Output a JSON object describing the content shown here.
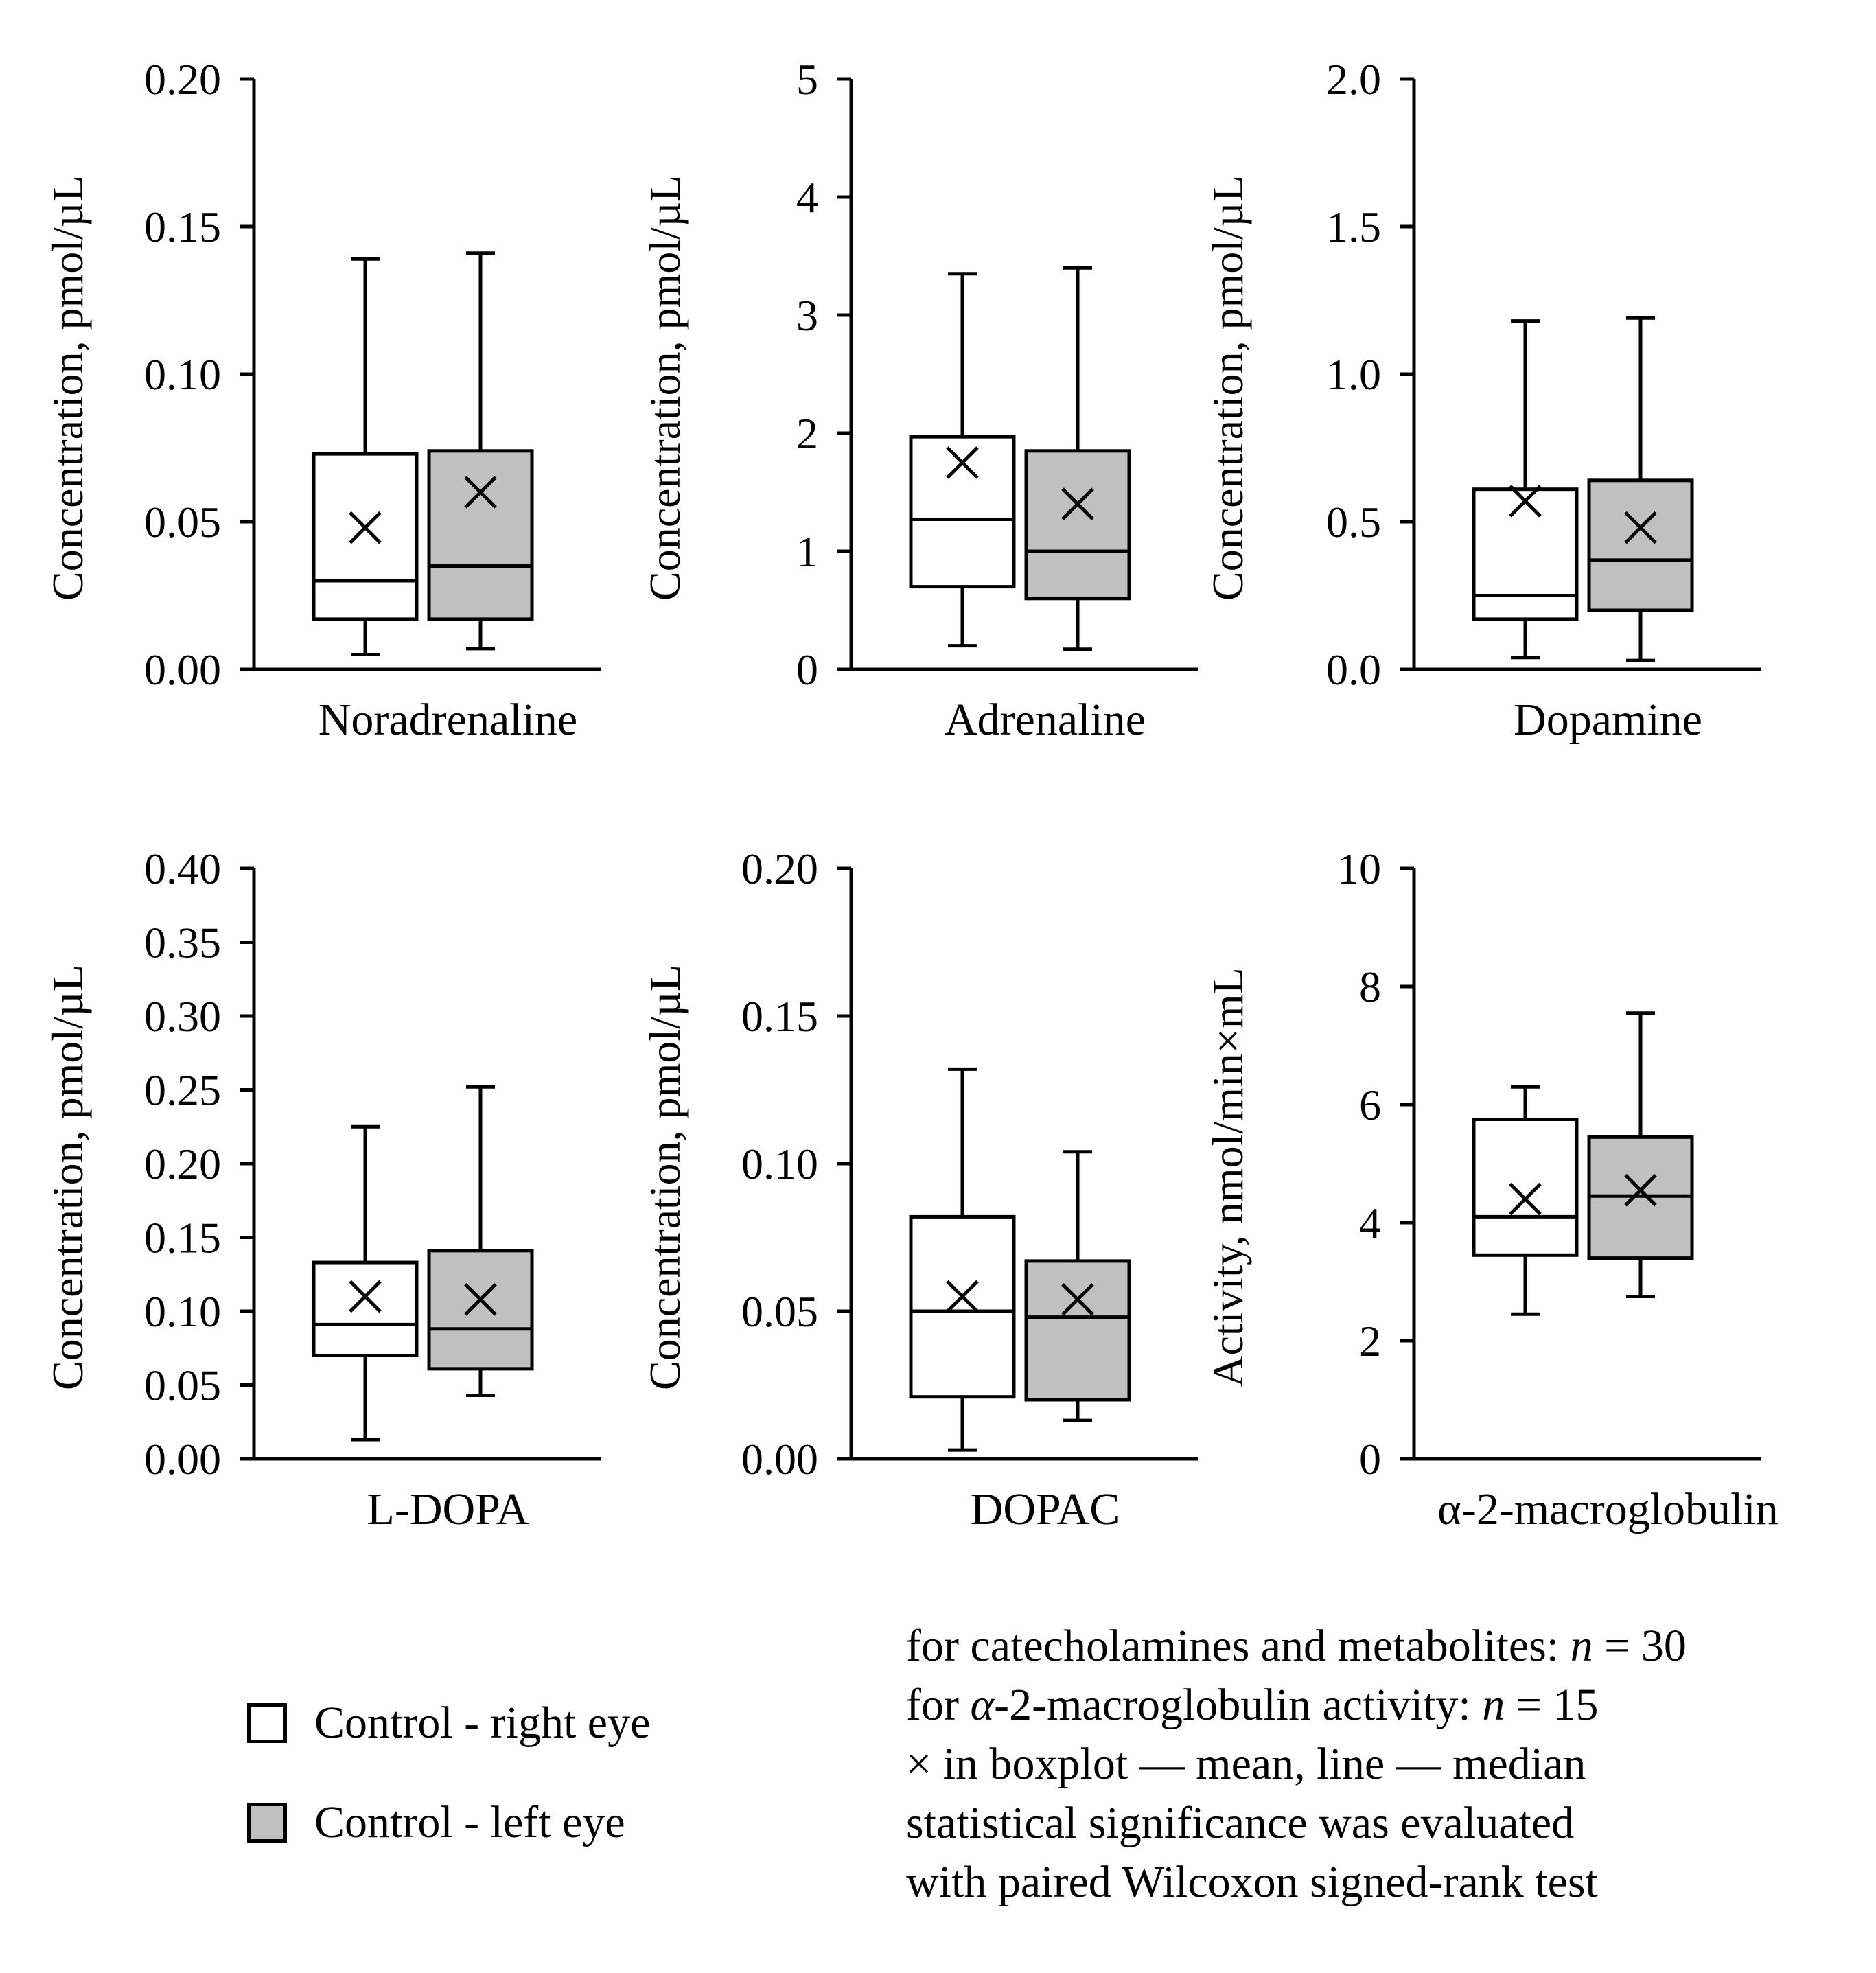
{
  "chart_data": [
    {
      "type": "boxplot",
      "id": "noradrenaline",
      "xlabel": "Noradrenaline",
      "ylabel": "Concentration, pmol/µL",
      "ylim": [
        0,
        0.2
      ],
      "yticks": [
        0.0,
        0.05,
        0.1,
        0.15,
        0.2
      ],
      "ytick_labels": [
        "0.00",
        "0.05",
        "0.10",
        "0.15",
        "0.20"
      ],
      "series": [
        {
          "name": "Control - right eye",
          "min": 0.005,
          "q1": 0.017,
          "median": 0.03,
          "q3": 0.073,
          "max": 0.139,
          "mean": 0.048
        },
        {
          "name": "Control - left eye",
          "min": 0.007,
          "q1": 0.017,
          "median": 0.035,
          "q3": 0.074,
          "max": 0.141,
          "mean": 0.06
        }
      ]
    },
    {
      "type": "boxplot",
      "id": "adrenaline",
      "xlabel": "Adrenaline",
      "ylabel": "Concentration, pmol/µL",
      "ylim": [
        0,
        5
      ],
      "yticks": [
        0,
        1,
        2,
        3,
        4,
        5
      ],
      "ytick_labels": [
        "0",
        "1",
        "2",
        "3",
        "4",
        "5"
      ],
      "series": [
        {
          "name": "Control - right eye",
          "min": 0.2,
          "q1": 0.7,
          "median": 1.27,
          "q3": 1.97,
          "max": 3.35,
          "mean": 1.75
        },
        {
          "name": "Control - left eye",
          "min": 0.17,
          "q1": 0.6,
          "median": 1.0,
          "q3": 1.85,
          "max": 3.4,
          "mean": 1.4
        }
      ]
    },
    {
      "type": "boxplot",
      "id": "dopamine",
      "xlabel": "Dopamine",
      "ylabel": "Concentration, pmol/µL",
      "ylim": [
        0,
        2.0
      ],
      "yticks": [
        0.0,
        0.5,
        1.0,
        1.5,
        2.0
      ],
      "ytick_labels": [
        "0.0",
        "0.5",
        "1.0",
        "1.5",
        "2.0"
      ],
      "series": [
        {
          "name": "Control - right eye",
          "min": 0.04,
          "q1": 0.17,
          "median": 0.25,
          "q3": 0.61,
          "max": 1.18,
          "mean": 0.57
        },
        {
          "name": "Control - left eye",
          "min": 0.03,
          "q1": 0.2,
          "median": 0.37,
          "q3": 0.64,
          "max": 1.19,
          "mean": 0.48
        }
      ]
    },
    {
      "type": "boxplot",
      "id": "l-dopa",
      "xlabel": "L-DOPA",
      "ylabel": "Concentration, pmol/µL",
      "ylim": [
        0,
        0.4
      ],
      "yticks": [
        0.0,
        0.05,
        0.1,
        0.15,
        0.2,
        0.25,
        0.3,
        0.35,
        0.4
      ],
      "ytick_labels": [
        "0.00",
        "0.05",
        "0.10",
        "0.15",
        "0.20",
        "0.25",
        "0.30",
        "0.35",
        "0.40"
      ],
      "series": [
        {
          "name": "Control - right eye",
          "min": 0.013,
          "q1": 0.07,
          "median": 0.091,
          "q3": 0.133,
          "max": 0.225,
          "mean": 0.11
        },
        {
          "name": "Control - left eye",
          "min": 0.043,
          "q1": 0.061,
          "median": 0.088,
          "q3": 0.141,
          "max": 0.252,
          "mean": 0.108
        }
      ]
    },
    {
      "type": "boxplot",
      "id": "dopac",
      "xlabel": "DOPAC",
      "ylabel": "Concentration, pmol/µL",
      "ylim": [
        0,
        0.2
      ],
      "yticks": [
        0.0,
        0.05,
        0.1,
        0.15,
        0.2
      ],
      "ytick_labels": [
        "0.00",
        "0.05",
        "0.10",
        "0.15",
        "0.20"
      ],
      "series": [
        {
          "name": "Control - right eye",
          "min": 0.003,
          "q1": 0.021,
          "median": 0.05,
          "q3": 0.082,
          "max": 0.132,
          "mean": 0.055
        },
        {
          "name": "Control - left eye",
          "min": 0.013,
          "q1": 0.02,
          "median": 0.048,
          "q3": 0.067,
          "max": 0.104,
          "mean": 0.054
        }
      ]
    },
    {
      "type": "boxplot",
      "id": "a2m",
      "xlabel": "α-2-macroglobulin",
      "ylabel": "Activity, nmol/min×mL",
      "ylim": [
        0,
        10
      ],
      "yticks": [
        0,
        2,
        4,
        6,
        8,
        10
      ],
      "ytick_labels": [
        "0",
        "2",
        "4",
        "6",
        "8",
        "10"
      ],
      "series": [
        {
          "name": "Control - right eye",
          "min": 2.45,
          "q1": 3.45,
          "median": 4.1,
          "q3": 5.75,
          "max": 6.3,
          "mean": 4.4
        },
        {
          "name": "Control - left eye",
          "min": 2.75,
          "q1": 3.4,
          "median": 4.45,
          "q3": 5.45,
          "max": 7.55,
          "mean": 4.55
        }
      ]
    }
  ],
  "legend": {
    "items": [
      {
        "label": "Control - right eye",
        "color": "#ffffff"
      },
      {
        "label": "Control - left eye",
        "color": "#c0c0c0"
      }
    ]
  },
  "notes": {
    "line1_prefix": "for catecholamines and metabolites: ",
    "line1_n": "n",
    "line1_suffix": " = 30",
    "line2_alpha": "α",
    "line2_prefix": "for ",
    "line2_mid": "-2-macroglobulin activity: ",
    "line2_n": "n",
    "line2_suffix": " = 15",
    "line3": "× in boxplot — mean, line — median",
    "line4": "statistical significance was evaluated",
    "line5": "with paired Wilcoxon signed-rank test"
  },
  "colors": {
    "right_eye_fill": "#ffffff",
    "left_eye_fill": "#c0c0c0",
    "stroke": "#000000"
  }
}
